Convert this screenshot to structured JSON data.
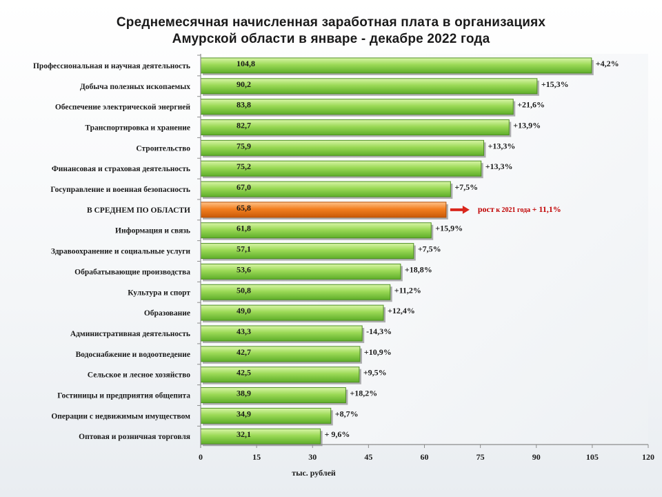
{
  "chart_data": {
    "type": "bar",
    "orientation": "horizontal",
    "title_line1": "Среднемесячная начисленная заработная плата в организациях",
    "title_line2": "Амурской области в январе - декабре 2022 года",
    "xlabel": "тыс. рублей",
    "xlim": [
      0,
      120
    ],
    "xticks": [
      0,
      15,
      30,
      45,
      60,
      75,
      90,
      105,
      120
    ],
    "grid": false,
    "colors": {
      "bar": "#8fd14f",
      "highlight": "#f07a1c",
      "highlight_text": "#c00000"
    },
    "categories": [
      "Профессиональная  и научная  деятельность",
      "Добыча полезных  ископаемых",
      "Обеспечение  электрической  энергией",
      "Транспортировка  и хранение",
      "Строительство",
      "Финансовая  и страховая  деятельность",
      "Госуправление  и военная  безопасность",
      "В СРЕДНЕМ  ПО ОБЛАСТИ",
      "Информация  и связь",
      "Здравоохранение  и социальные  услуги",
      "Обрабатывающие  производства",
      "Культура  и спорт",
      "Образование",
      "Административная  деятельность",
      "Водоснабжение  и водоотведение",
      "Сельское  и лесное хозяйство",
      "Гостиницы  и предприятия  общепита",
      "Операции  с недвижимым имуществом",
      "Оптовая  и розничная  торговля"
    ],
    "values": [
      104.8,
      90.2,
      83.8,
      82.7,
      75.9,
      75.2,
      67.0,
      65.8,
      61.8,
      57.1,
      53.6,
      50.8,
      49.0,
      43.3,
      42.7,
      42.5,
      38.9,
      34.9,
      32.1
    ],
    "value_labels": [
      "104,8",
      "90,2",
      "83,8",
      "82,7",
      "75,9",
      "75,2",
      "67,0",
      "65,8",
      "61,8",
      "57,1",
      "53,6",
      "50,8",
      "49,0",
      "43,3",
      "42,7",
      "42,5",
      "38,9",
      "34,9",
      "32,1"
    ],
    "growth_labels": [
      "+4,2%",
      "+15,3%",
      "+21,6%",
      "+13,9%",
      "+13,3%",
      "+13,3%",
      "+7,5%",
      "",
      "+15,9%",
      "+7,5%",
      "+18,8%",
      "+11,2%",
      "+12,4%",
      "-14,3%",
      "+10,9%",
      "+9,5%",
      "+18,2%",
      "+8,7%",
      "+ 9,6%"
    ],
    "highlight_index": 7,
    "highlight_annotation": {
      "prefix": "рост",
      "middle": " к 2021 года ",
      "suffix": "+ 11,1%"
    }
  }
}
